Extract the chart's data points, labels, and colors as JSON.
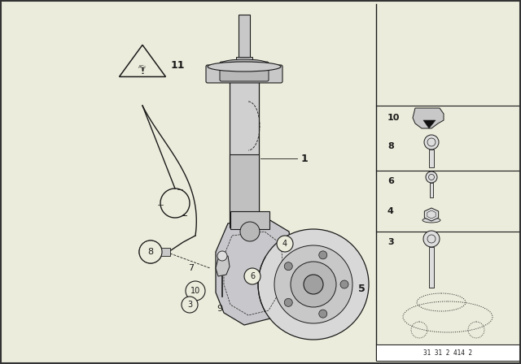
{
  "bg_color": "#ececdc",
  "line_color": "#1a1a1a",
  "part_number_box": "31 31 2 414 2",
  "border_color": "#555555",
  "gray_fill": "#c8c8c8",
  "dark_gray": "#888888",
  "light_gray": "#dddddd"
}
